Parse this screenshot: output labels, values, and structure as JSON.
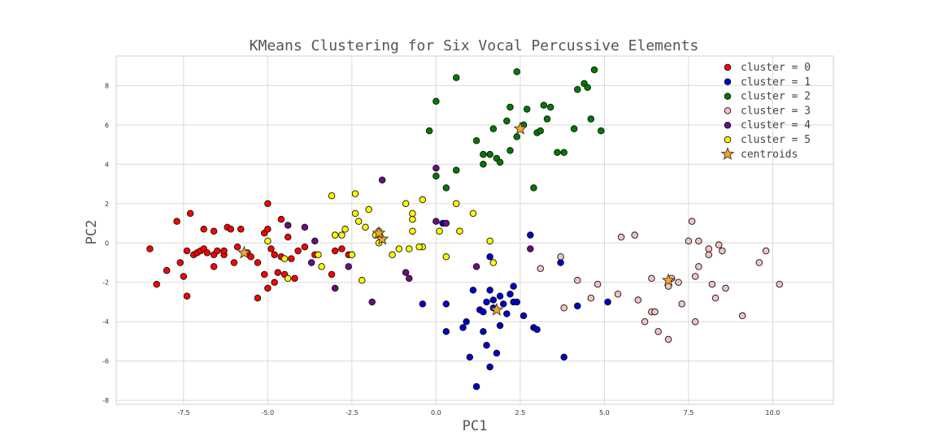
{
  "chart_data": {
    "type": "scatter",
    "title": "KMeans Clustering for Six Vocal Percussive Elements",
    "xlabel": "PC1",
    "ylabel": "PC2",
    "xlim": [
      -9.5,
      11.8
    ],
    "ylim": [
      -8.2,
      9.5
    ],
    "xticks": [
      -7.5,
      -5.0,
      -2.5,
      0.0,
      2.5,
      5.0,
      7.5,
      10.0
    ],
    "xtick_labels": [
      "-7.5",
      "-5.0",
      "-2.5",
      "0.0",
      "2.5",
      "5.0",
      "7.5",
      "10.0"
    ],
    "yticks": [
      -8,
      -6,
      -4,
      -2,
      0,
      2,
      4,
      6,
      8
    ],
    "ytick_labels": [
      "-8",
      "-6",
      "-4",
      "-2",
      "0",
      "2",
      "4",
      "6",
      "8"
    ],
    "grid": true,
    "legend_position": "top-right",
    "series": [
      {
        "name": "cluster = 0",
        "color": "#ff0000",
        "points": [
          [
            -8.5,
            -0.3
          ],
          [
            -8.3,
            -2.1
          ],
          [
            -8.0,
            -1.4
          ],
          [
            -7.7,
            1.1
          ],
          [
            -7.6,
            -1.0
          ],
          [
            -7.5,
            -1.7
          ],
          [
            -7.4,
            -0.4
          ],
          [
            -7.4,
            -2.7
          ],
          [
            -7.3,
            1.5
          ],
          [
            -7.2,
            -0.6
          ],
          [
            -7.1,
            -0.5
          ],
          [
            -7.0,
            -0.4
          ],
          [
            -6.9,
            -0.3
          ],
          [
            -6.9,
            0.7
          ],
          [
            -6.8,
            -0.5
          ],
          [
            -6.6,
            0.6
          ],
          [
            -6.6,
            -0.6
          ],
          [
            -6.5,
            -0.4
          ],
          [
            -6.6,
            -1.2
          ],
          [
            -6.3,
            -0.6
          ],
          [
            -6.2,
            0.8
          ],
          [
            -6.1,
            0.7
          ],
          [
            -6.0,
            -1.0
          ],
          [
            -5.9,
            -0.2
          ],
          [
            -5.8,
            0.7
          ],
          [
            -5.6,
            -0.5
          ],
          [
            -5.5,
            -0.7
          ],
          [
            -5.3,
            -1.0
          ],
          [
            -5.3,
            -2.8
          ],
          [
            -5.1,
            0.5
          ],
          [
            -5.0,
            0.7
          ],
          [
            -5.0,
            2.0
          ],
          [
            -5.0,
            -2.3
          ],
          [
            -4.9,
            -0.3
          ],
          [
            -4.8,
            -2.0
          ],
          [
            -4.7,
            -1.5
          ],
          [
            -4.6,
            -0.7
          ],
          [
            -4.6,
            1.2
          ],
          [
            -4.5,
            -1.6
          ],
          [
            -4.4,
            0.3
          ],
          [
            -4.3,
            -0.8
          ],
          [
            -4.2,
            -1.8
          ],
          [
            -4.1,
            -0.4
          ],
          [
            -3.9,
            -0.2
          ],
          [
            -3.6,
            -0.6
          ],
          [
            -3.1,
            -1.6
          ],
          [
            -3.0,
            -0.4
          ],
          [
            -2.8,
            -0.3
          ],
          [
            -2.6,
            -0.6
          ],
          [
            -5.1,
            -1.6
          ],
          [
            -4.8,
            -0.6
          ],
          [
            -6.3,
            -0.4
          ]
        ]
      },
      {
        "name": "cluster = 1",
        "color": "#0000cc",
        "points": [
          [
            -0.4,
            -3.1
          ],
          [
            0.2,
            1.0
          ],
          [
            0.3,
            -4.5
          ],
          [
            0.3,
            -3.1
          ],
          [
            0.8,
            -4.3
          ],
          [
            0.9,
            -4.0
          ],
          [
            1.0,
            -5.8
          ],
          [
            1.1,
            -2.4
          ],
          [
            1.2,
            -7.3
          ],
          [
            1.3,
            -3.4
          ],
          [
            1.4,
            -4.5
          ],
          [
            1.4,
            -3.5
          ],
          [
            1.5,
            -5.2
          ],
          [
            1.5,
            -3.0
          ],
          [
            1.6,
            -2.4
          ],
          [
            1.6,
            -6.3
          ],
          [
            1.7,
            -3.3
          ],
          [
            1.7,
            -2.9
          ],
          [
            1.8,
            -5.6
          ],
          [
            1.9,
            -4.2
          ],
          [
            1.9,
            -2.7
          ],
          [
            2.0,
            -3.1
          ],
          [
            2.2,
            -2.6
          ],
          [
            2.3,
            -3.0
          ],
          [
            2.3,
            -2.2
          ],
          [
            2.4,
            -3.0
          ],
          [
            2.6,
            -3.7
          ],
          [
            2.8,
            0.4
          ],
          [
            2.9,
            -4.3
          ],
          [
            3.0,
            -4.4
          ],
          [
            3.7,
            -1.0
          ],
          [
            3.8,
            -5.8
          ],
          [
            4.2,
            -3.2
          ],
          [
            5.1,
            -3.0
          ],
          [
            1.6,
            -0.7
          ],
          [
            2.1,
            -3.6
          ]
        ]
      },
      {
        "name": "cluster = 2",
        "color": "#007a00",
        "points": [
          [
            -0.2,
            5.7
          ],
          [
            0.0,
            7.2
          ],
          [
            0.0,
            3.4
          ],
          [
            0.3,
            2.8
          ],
          [
            0.6,
            3.7
          ],
          [
            0.6,
            8.4
          ],
          [
            1.2,
            5.2
          ],
          [
            1.4,
            4.0
          ],
          [
            1.4,
            4.5
          ],
          [
            1.6,
            4.5
          ],
          [
            1.7,
            5.8
          ],
          [
            1.8,
            4.3
          ],
          [
            1.9,
            4.1
          ],
          [
            2.1,
            6.2
          ],
          [
            2.2,
            4.7
          ],
          [
            2.2,
            6.9
          ],
          [
            2.4,
            8.7
          ],
          [
            2.4,
            5.4
          ],
          [
            2.6,
            6.0
          ],
          [
            2.7,
            6.8
          ],
          [
            2.9,
            2.8
          ],
          [
            3.0,
            5.6
          ],
          [
            3.1,
            5.7
          ],
          [
            3.2,
            7.0
          ],
          [
            3.3,
            6.3
          ],
          [
            3.4,
            6.9
          ],
          [
            3.6,
            4.6
          ],
          [
            3.8,
            4.6
          ],
          [
            4.1,
            5.8
          ],
          [
            4.2,
            7.8
          ],
          [
            4.4,
            8.1
          ],
          [
            4.5,
            7.9
          ],
          [
            4.6,
            6.3
          ],
          [
            4.7,
            8.8
          ],
          [
            4.9,
            5.7
          ]
        ]
      },
      {
        "name": "cluster = 3",
        "color": "#f4c2c2",
        "points": [
          [
            3.7,
            -0.7
          ],
          [
            3.8,
            -3.3
          ],
          [
            4.2,
            -1.9
          ],
          [
            4.6,
            -2.8
          ],
          [
            4.8,
            -2.1
          ],
          [
            5.4,
            -2.6
          ],
          [
            5.5,
            0.3
          ],
          [
            5.9,
            0.4
          ],
          [
            6.0,
            -2.9
          ],
          [
            6.2,
            -4.0
          ],
          [
            6.4,
            -1.8
          ],
          [
            6.4,
            -3.5
          ],
          [
            6.5,
            -3.5
          ],
          [
            6.6,
            -4.5
          ],
          [
            6.9,
            -4.9
          ],
          [
            6.9,
            -2.2
          ],
          [
            7.0,
            -1.8
          ],
          [
            7.2,
            -2.0
          ],
          [
            7.3,
            -3.1
          ],
          [
            7.5,
            0.1
          ],
          [
            7.6,
            1.1
          ],
          [
            7.7,
            -4.0
          ],
          [
            7.7,
            -1.7
          ],
          [
            7.8,
            -1.2
          ],
          [
            7.8,
            0.1
          ],
          [
            8.1,
            -0.6
          ],
          [
            8.1,
            -0.3
          ],
          [
            8.2,
            -2.1
          ],
          [
            8.3,
            -2.8
          ],
          [
            8.4,
            -0.1
          ],
          [
            8.5,
            -0.4
          ],
          [
            8.6,
            -2.3
          ],
          [
            9.1,
            -3.7
          ],
          [
            9.6,
            -1.0
          ],
          [
            9.8,
            -0.4
          ],
          [
            10.2,
            -2.1
          ],
          [
            3.1,
            -1.3
          ]
        ]
      },
      {
        "name": "cluster = 4",
        "color": "#6a0d83",
        "points": [
          [
            -4.4,
            0.9
          ],
          [
            -3.9,
            0.8
          ],
          [
            -3.7,
            -1.0
          ],
          [
            -3.6,
            0.1
          ],
          [
            -3.0,
            -2.3
          ],
          [
            -2.6,
            -1.2
          ],
          [
            -1.9,
            -3.0
          ],
          [
            -1.6,
            3.2
          ],
          [
            -0.9,
            -1.5
          ],
          [
            -0.8,
            -1.8
          ],
          [
            0.0,
            3.8
          ],
          [
            0.0,
            1.1
          ],
          [
            0.3,
            1.0
          ],
          [
            1.2,
            -1.2
          ],
          [
            2.8,
            -0.3
          ]
        ]
      },
      {
        "name": "cluster = 5",
        "color": "#ffff00",
        "points": [
          [
            -5.0,
            0.1
          ],
          [
            -4.5,
            -0.8
          ],
          [
            -4.4,
            -1.8
          ],
          [
            -3.5,
            -0.6
          ],
          [
            -3.4,
            -1.2
          ],
          [
            -3.1,
            2.4
          ],
          [
            -3.0,
            0.4
          ],
          [
            -2.8,
            0.4
          ],
          [
            -2.7,
            0.7
          ],
          [
            -2.5,
            -0.6
          ],
          [
            -2.4,
            1.5
          ],
          [
            -2.4,
            2.5
          ],
          [
            -2.3,
            1.1
          ],
          [
            -2.2,
            -1.9
          ],
          [
            -2.1,
            0.8
          ],
          [
            -2.0,
            1.7
          ],
          [
            -1.8,
            0.4
          ],
          [
            -1.7,
            0.0
          ],
          [
            -1.6,
            0.2
          ],
          [
            -1.3,
            -0.6
          ],
          [
            -1.1,
            -0.3
          ],
          [
            -0.9,
            2.0
          ],
          [
            -0.8,
            -0.3
          ],
          [
            -0.7,
            1.5
          ],
          [
            -0.7,
            1.2
          ],
          [
            -0.7,
            0.6
          ],
          [
            -0.4,
            2.2
          ],
          [
            -0.4,
            -0.2
          ],
          [
            0.1,
            0.6
          ],
          [
            0.3,
            -0.7
          ],
          [
            0.6,
            2.0
          ],
          [
            0.7,
            0.6
          ],
          [
            1.1,
            1.5
          ],
          [
            1.6,
            0.1
          ],
          [
            1.7,
            -1.0
          ],
          [
            -1.7,
            0.6
          ],
          [
            -0.5,
            -0.2
          ]
        ]
      }
    ],
    "centroids": {
      "name": "centroids",
      "color": "#f5a623",
      "points": [
        [
          -5.7,
          -0.5
        ],
        [
          1.8,
          -3.4
        ],
        [
          2.5,
          5.8
        ],
        [
          6.9,
          -1.9
        ],
        [
          -1.6,
          0.2
        ],
        [
          -1.7,
          0.5
        ]
      ]
    }
  }
}
